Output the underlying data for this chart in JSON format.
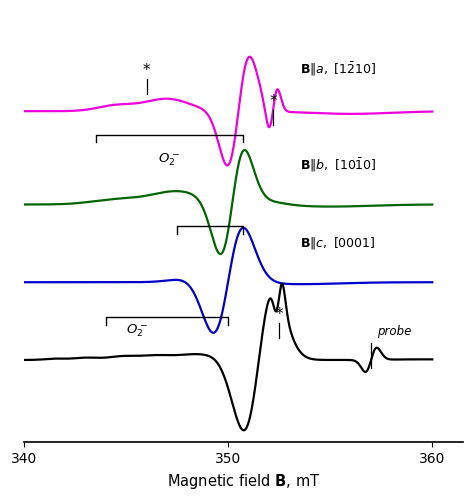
{
  "xlim": [
    340,
    360
  ],
  "xlim_plot": [
    340,
    361.5
  ],
  "xticks": [
    340,
    350,
    360
  ],
  "colors": {
    "magenta": "#ee00dd",
    "green": "#006400",
    "blue": "#0000cc",
    "black": "#000000"
  },
  "offsets": {
    "magenta": 3.2,
    "green": 2.0,
    "blue": 1.0,
    "black": 0.0
  },
  "scale": 0.7
}
